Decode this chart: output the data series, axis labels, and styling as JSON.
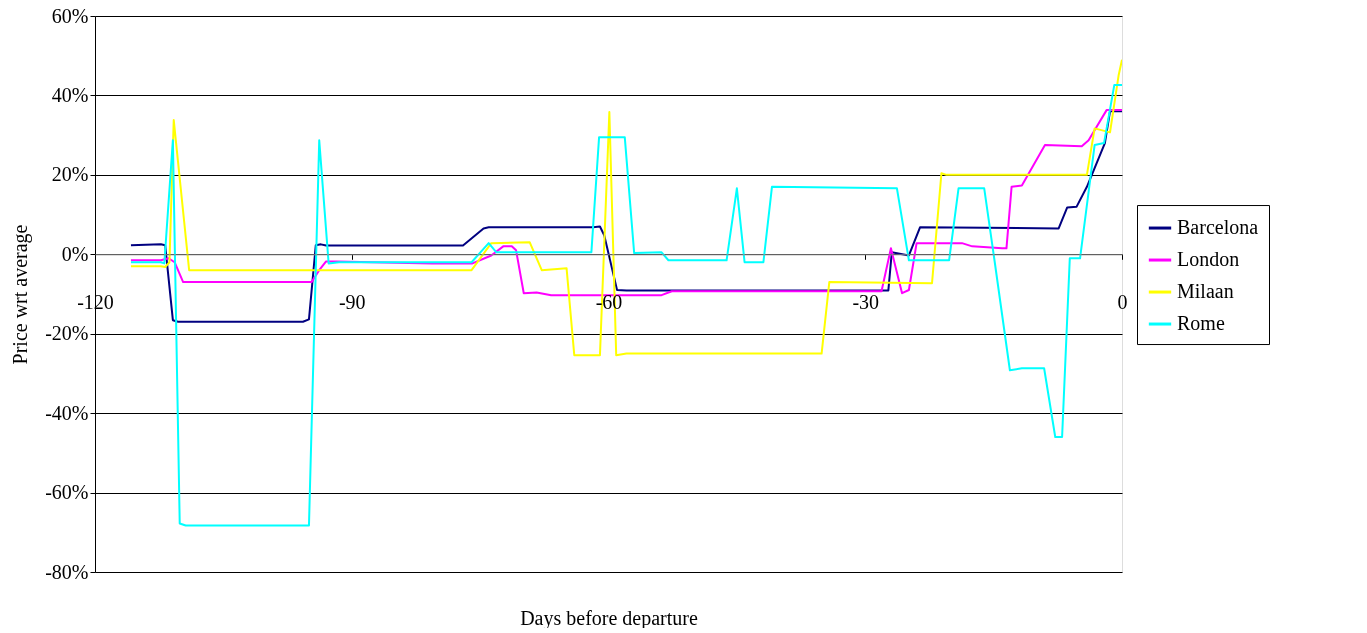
{
  "chart_data": {
    "type": "line",
    "xlabel": "Days before departure",
    "ylabel": "Price wrt average",
    "xlim": [
      -120,
      0
    ],
    "xticks": [
      -120,
      -90,
      -60,
      -30,
      0
    ],
    "ylim": [
      -80,
      60
    ],
    "yticks": [
      {
        "value": -80,
        "label": "-80%"
      },
      {
        "value": -60,
        "label": "-60%"
      },
      {
        "value": -40,
        "label": "-40%"
      },
      {
        "value": -20,
        "label": "-20%"
      },
      {
        "value": 0,
        "label": "0%"
      },
      {
        "value": 20,
        "label": "20%"
      },
      {
        "value": 40,
        "label": "40%"
      },
      {
        "value": 60,
        "label": "60%"
      }
    ],
    "grid": "y",
    "legend": "right",
    "marker": "none",
    "line_style": "solid",
    "series": [
      {
        "name": "Barcelona",
        "color": "#000080",
        "x": [
          -115.8,
          -112.3,
          -111.8,
          -110.9,
          -110.3,
          -95.7,
          -95,
          -94.2,
          -93.6,
          -93,
          -77,
          -74.6,
          -74,
          -61.8,
          -61,
          -60.5,
          -59,
          -57.9,
          -28.1,
          -27.3,
          -26.9,
          -24.9,
          -23.6,
          -7.4,
          -6.4,
          -5.3,
          -4.1,
          -2,
          -1.4,
          0
        ],
        "values": [
          2.3,
          2.5,
          2.3,
          -16.6,
          -17,
          -17,
          -16.4,
          2.3,
          2.5,
          2.2,
          2.2,
          6.5,
          6.8,
          6.8,
          7,
          4.8,
          -9,
          -9.1,
          -9.1,
          -9.1,
          0.5,
          -0.3,
          6.8,
          6.5,
          11.8,
          12,
          17,
          28,
          36,
          36
        ]
      },
      {
        "name": "London",
        "color": "#ff00ff",
        "x": [
          -115.8,
          -112.3,
          -111.4,
          -110.7,
          -109.7,
          -108.8,
          -94.7,
          -93.8,
          -93,
          -91.8,
          -80.6,
          -75.9,
          -73.7,
          -72.3,
          -71.3,
          -70.8,
          -69.9,
          -68.4,
          -66.7,
          -53.8,
          -52.6,
          -28.1,
          -27,
          -25.7,
          -24.9,
          -24,
          -18.7,
          -17.5,
          -14,
          -13.5,
          -12.9,
          -11.7,
          -9,
          -4.7,
          -3.9,
          -1.8,
          0
        ],
        "values": [
          -1.5,
          -1.5,
          -1,
          -2,
          -7,
          -7,
          -7,
          -4,
          -1.8,
          -1.8,
          -2.3,
          -2.3,
          -0.3,
          2,
          2,
          1,
          -9.8,
          -9.6,
          -10.3,
          -10.3,
          -9.3,
          -9.3,
          1.5,
          -9.8,
          -9,
          2.8,
          2.8,
          2,
          1.5,
          1.5,
          17,
          17.3,
          27.5,
          27.2,
          28.7,
          36.3,
          36.3
        ]
      },
      {
        "name": "Milaan",
        "color": "#ffff00",
        "x": [
          -115.8,
          -112.3,
          -111.8,
          -111.3,
          -110.8,
          -109,
          -108.2,
          -76,
          -73.7,
          -69.2,
          -67.8,
          -64.9,
          -64,
          -61,
          -59.9,
          -59.1,
          -57.9,
          -35.1,
          -34.2,
          -22.2,
          -21.1,
          -20.5,
          -4.1,
          -3.2,
          -1.4,
          -0.4,
          0
        ],
        "values": [
          -3,
          -3,
          -3.2,
          -2,
          33.8,
          -4,
          -4,
          -4,
          2.8,
          3,
          -4,
          -3.5,
          -25.4,
          -25.4,
          35.8,
          -25.4,
          -25,
          -25,
          -7,
          -7.3,
          20.4,
          20,
          20,
          31.7,
          30.7,
          45,
          49
        ]
      },
      {
        "name": "Rome",
        "color": "#00ffff",
        "x": [
          -115.8,
          -112.3,
          -111.9,
          -110.9,
          -110.1,
          -109.4,
          -96,
          -95,
          -93.8,
          -92.7,
          -91.5,
          -76,
          -74,
          -73.1,
          -62,
          -61.1,
          -58.1,
          -57,
          -53.8,
          -53,
          -46.2,
          -45,
          -44.1,
          -41.9,
          -40.9,
          -26.3,
          -24.9,
          -20.2,
          -19.1,
          -16.1,
          -14.9,
          -13.1,
          -11.7,
          -9.1,
          -7.8,
          -7,
          -6.1,
          -4.9,
          -3.2,
          -2.1,
          -0.9,
          0
        ],
        "values": [
          -2,
          -2,
          -2.3,
          28.7,
          -67.8,
          -68.3,
          -68.3,
          -68.3,
          28.7,
          -2.3,
          -2,
          -2,
          2.8,
          0.5,
          0.5,
          29.5,
          29.5,
          0.3,
          0.5,
          -1.5,
          -1.5,
          16.6,
          -2,
          -2,
          17,
          16.6,
          -1.5,
          -1.5,
          16.6,
          16.6,
          -1.5,
          -29.2,
          -28.7,
          -28.7,
          -46,
          -46,
          -1,
          -1,
          27.5,
          28,
          42.6,
          42.6
        ]
      }
    ]
  }
}
